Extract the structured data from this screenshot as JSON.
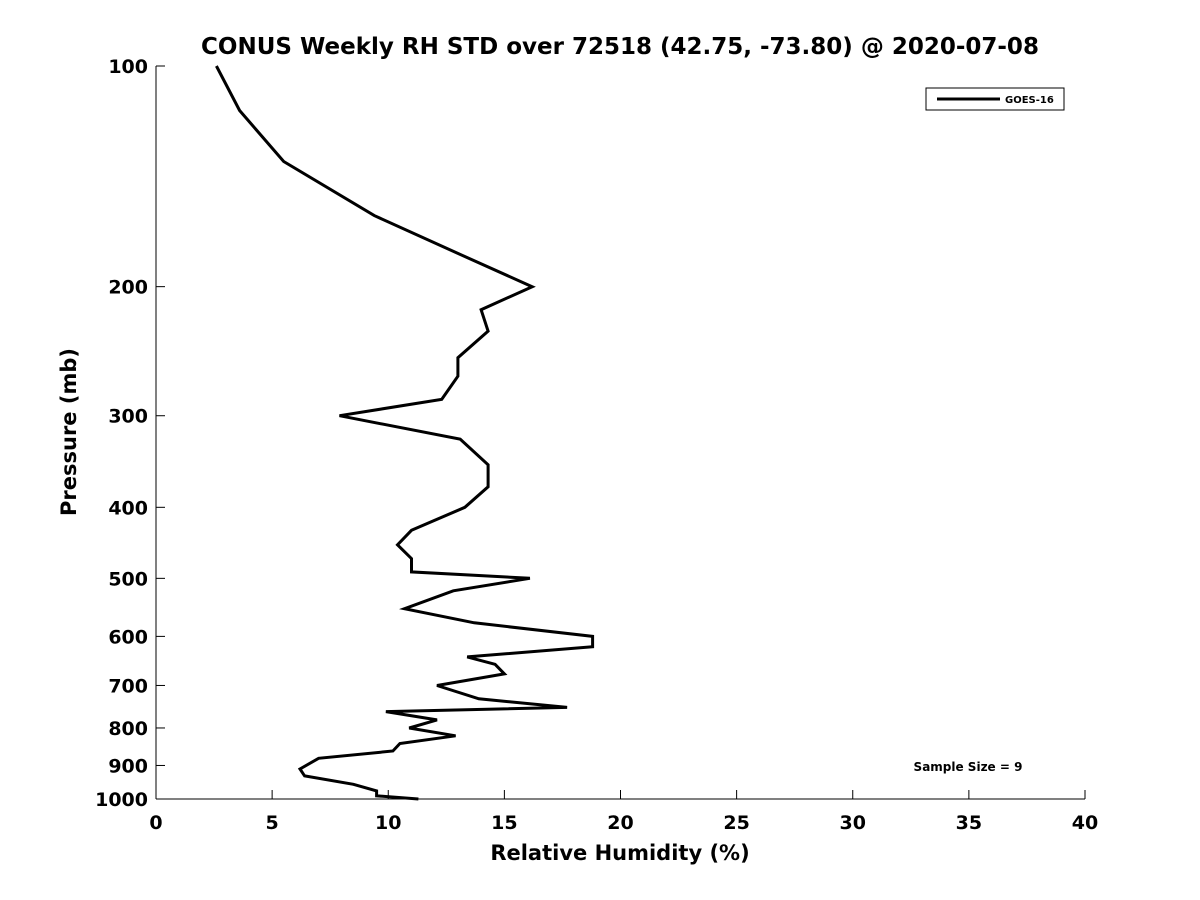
{
  "chart_data": {
    "type": "line",
    "title": "CONUS Weekly RH STD over 72518 (42.75, -73.80) @ 2020-07-08",
    "xlabel": "Relative Humidity (%)",
    "ylabel": "Pressure (mb)",
    "xlim": [
      0,
      40
    ],
    "ylim": [
      100,
      1000
    ],
    "y_scale": "log",
    "y_reversed": true,
    "x_ticks": [
      "0",
      "5",
      "10",
      "15",
      "20",
      "25",
      "30",
      "35",
      "40"
    ],
    "y_ticks": [
      "100",
      "200",
      "300",
      "400",
      "500",
      "600",
      "700",
      "800",
      "900",
      "1000"
    ],
    "grid": false,
    "legend_position": "top-right",
    "series": [
      {
        "name": "GOES-16",
        "color": "#000000",
        "x": [
          2.6,
          3.6,
          5.5,
          9.4,
          13.8,
          16.2,
          14.0,
          14.3,
          13.0,
          13.0,
          12.3,
          7.9,
          13.1,
          14.3,
          14.3,
          13.3,
          11.0,
          10.4,
          11.0,
          11.0,
          16.1,
          12.8,
          10.7,
          13.7,
          18.8,
          18.8,
          13.4,
          14.6,
          15.0,
          12.1,
          13.9,
          17.7,
          9.9,
          12.1,
          10.9,
          12.9,
          10.5,
          10.2,
          7.0,
          6.2,
          6.4,
          8.5,
          9.5,
          9.5,
          11.3
        ],
        "y": [
          100,
          115,
          135,
          160,
          185,
          200,
          215,
          230,
          250,
          265,
          285,
          300,
          323,
          350,
          375,
          400,
          430,
          450,
          470,
          490,
          500,
          520,
          550,
          575,
          600,
          620,
          640,
          655,
          675,
          700,
          730,
          750,
          760,
          780,
          800,
          820,
          840,
          860,
          880,
          910,
          930,
          955,
          975,
          990,
          1000
        ]
      }
    ],
    "annotations": [
      "Sample Size = 9"
    ]
  }
}
